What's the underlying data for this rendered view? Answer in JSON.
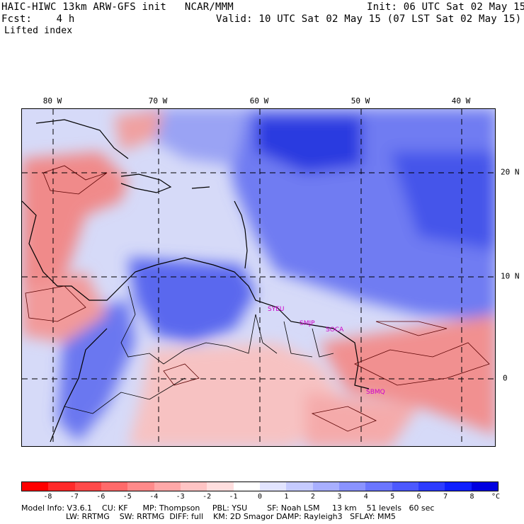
{
  "header": {
    "title_left": "HAIC-HIWC 13km ARW-GFS init   NCAR/MMM",
    "init": "Init: 06 UTC Sat 02 May 15",
    "fcst": "Fcst:    4 h",
    "valid": "Valid: 10 UTC Sat 02 May 15 (07 LST Sat 02 May 15)",
    "field": "Lifted index"
  },
  "lon_labels": [
    "80 W",
    "70 W",
    "60 W",
    "50 W",
    "40 W"
  ],
  "lat_labels": [
    "20 N",
    "10 N",
    "0"
  ],
  "place_labels": [
    "SYEU",
    "SMJP",
    "SOCA",
    "SBMQ"
  ],
  "colorbar": {
    "ticks": [
      "-8",
      "-7",
      "-6",
      "-5",
      "-4",
      "-3",
      "-2",
      "-1",
      "0",
      "1",
      "2",
      "3",
      "4",
      "5",
      "6",
      "7",
      "8"
    ],
    "unit": "°C",
    "colors": [
      "#ff0000",
      "#ff2a2a",
      "#ff4a4a",
      "#ff6a6a",
      "#ff8a8a",
      "#ffa8a8",
      "#ffc4c4",
      "#ffdede",
      "#ffffff",
      "#e2e4ff",
      "#c6cbff",
      "#a8afff",
      "#8a93ff",
      "#6b76ff",
      "#4c59ff",
      "#2d3cff",
      "#0e1fff",
      "#0000e0"
    ]
  },
  "model_info": {
    "line1": "Model Info: V3.6.1    CU: KF      MP: Thompson     PBL: YSU        SF: Noah LSM     13 km    51 levels   60 sec",
    "line2": "                  LW: RRTMG    SW: RRTMG  DIFF: full    KM: 2D Smagor DAMP: Rayleigh3   SFLAY: MM5"
  }
}
